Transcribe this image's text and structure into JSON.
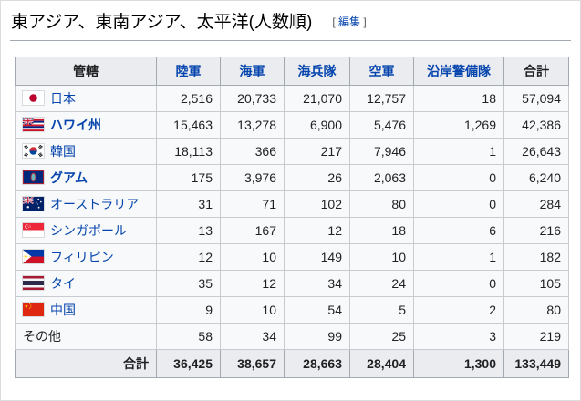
{
  "page": {
    "title": "東アジア、東南アジア、太平洋(人数順)",
    "edit": {
      "open": "[",
      "label": "編集",
      "close": "]"
    }
  },
  "colors": {
    "link": "#0645ad",
    "header_bg": "#eaecf0",
    "table_border": "#a2a9b1",
    "cell_border": "#c8ccd1",
    "table_bg": "#f8f9fa"
  },
  "table": {
    "headers": [
      {
        "key": "jurisdiction",
        "label": "管轄",
        "link": false
      },
      {
        "key": "army",
        "label": "陸軍",
        "link": true
      },
      {
        "key": "navy",
        "label": "海軍",
        "link": true
      },
      {
        "key": "marines",
        "label": "海兵隊",
        "link": true
      },
      {
        "key": "air-force",
        "label": "空軍",
        "link": true
      },
      {
        "key": "coast-guard",
        "label": "沿岸警備隊",
        "link": true
      },
      {
        "key": "total",
        "label": "合計",
        "link": false
      }
    ],
    "rows": [
      {
        "key": "japan",
        "label": "日本",
        "flag": "japan",
        "link": true,
        "bold": false,
        "values": [
          "2,516",
          "20,733",
          "21,070",
          "12,757",
          "18",
          "57,094"
        ]
      },
      {
        "key": "hawaii",
        "label": "ハワイ州",
        "flag": "hawaii",
        "link": true,
        "bold": true,
        "values": [
          "15,463",
          "13,278",
          "6,900",
          "5,476",
          "1,269",
          "42,386"
        ]
      },
      {
        "key": "south-korea",
        "label": "韓国",
        "flag": "south-korea",
        "link": true,
        "bold": false,
        "values": [
          "18,113",
          "366",
          "217",
          "7,946",
          "1",
          "26,643"
        ]
      },
      {
        "key": "guam",
        "label": "グアム",
        "flag": "guam",
        "link": true,
        "bold": true,
        "values": [
          "175",
          "3,976",
          "26",
          "2,063",
          "0",
          "6,240"
        ]
      },
      {
        "key": "australia",
        "label": "オーストラリア",
        "flag": "australia",
        "link": true,
        "bold": false,
        "values": [
          "31",
          "71",
          "102",
          "80",
          "0",
          "284"
        ]
      },
      {
        "key": "singapore",
        "label": "シンガポール",
        "flag": "singapore",
        "link": true,
        "bold": false,
        "values": [
          "13",
          "167",
          "12",
          "18",
          "6",
          "216"
        ]
      },
      {
        "key": "philippines",
        "label": "フィリピン",
        "flag": "philippines",
        "link": true,
        "bold": false,
        "values": [
          "12",
          "10",
          "149",
          "10",
          "1",
          "182"
        ]
      },
      {
        "key": "thailand",
        "label": "タイ",
        "flag": "thailand",
        "link": true,
        "bold": false,
        "values": [
          "35",
          "12",
          "34",
          "24",
          "0",
          "105"
        ]
      },
      {
        "key": "china",
        "label": "中国",
        "flag": "china",
        "link": true,
        "bold": false,
        "values": [
          "9",
          "10",
          "54",
          "5",
          "2",
          "80"
        ]
      },
      {
        "key": "others",
        "label": "その他",
        "flag": null,
        "link": false,
        "bold": false,
        "values": [
          "58",
          "34",
          "99",
          "25",
          "3",
          "219"
        ]
      }
    ],
    "total_row": {
      "label": "合計",
      "values": [
        "36,425",
        "38,657",
        "28,663",
        "28,404",
        "1,300",
        "133,449"
      ]
    }
  }
}
